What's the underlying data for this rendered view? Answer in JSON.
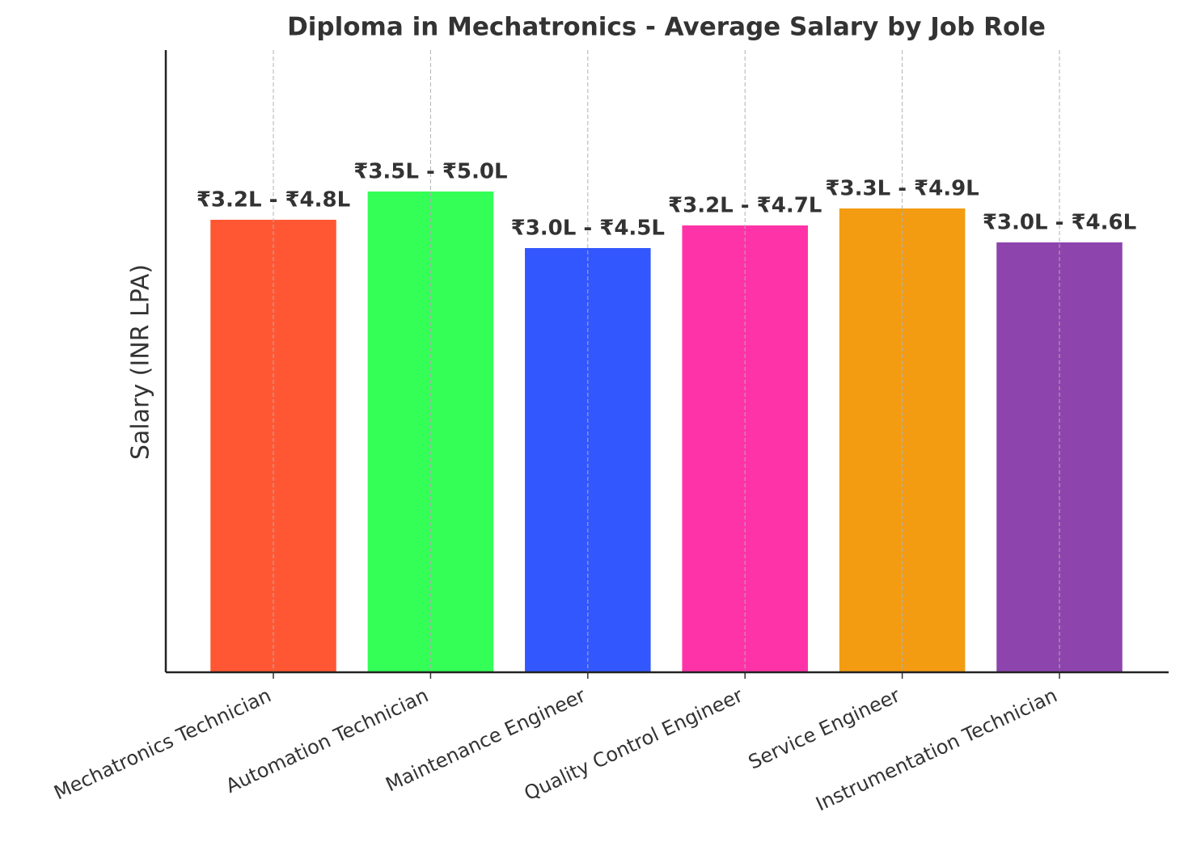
{
  "chart_data": {
    "type": "bar",
    "title": "Diploma in Mechatronics - Average Salary by Job Role",
    "y_label": "Salary (INR LPA)",
    "categories": [
      "Mechatronics Technician",
      "Automation Technician",
      "Maintenance Engineer",
      "Quality Control Engineer",
      "Service Engineer",
      "Instrumentation Technician"
    ],
    "values": [
      4.0,
      4.25,
      3.75,
      3.95,
      4.1,
      3.8
    ],
    "annotations": [
      "₹3.2L - ₹4.8L",
      "₹3.5L - ₹5.0L",
      "₹3.0L - ₹4.5L",
      "₹3.2L - ₹4.7L",
      "₹3.3L - ₹4.9L",
      "₹3.0L - ₹4.6L"
    ],
    "colors": [
      "#ff5733",
      "#33ff57",
      "#3357ff",
      "#ff33a8",
      "#f39c12",
      "#8e44ad"
    ],
    "ylim": [
      0,
      5.5
    ],
    "grid": "x"
  }
}
